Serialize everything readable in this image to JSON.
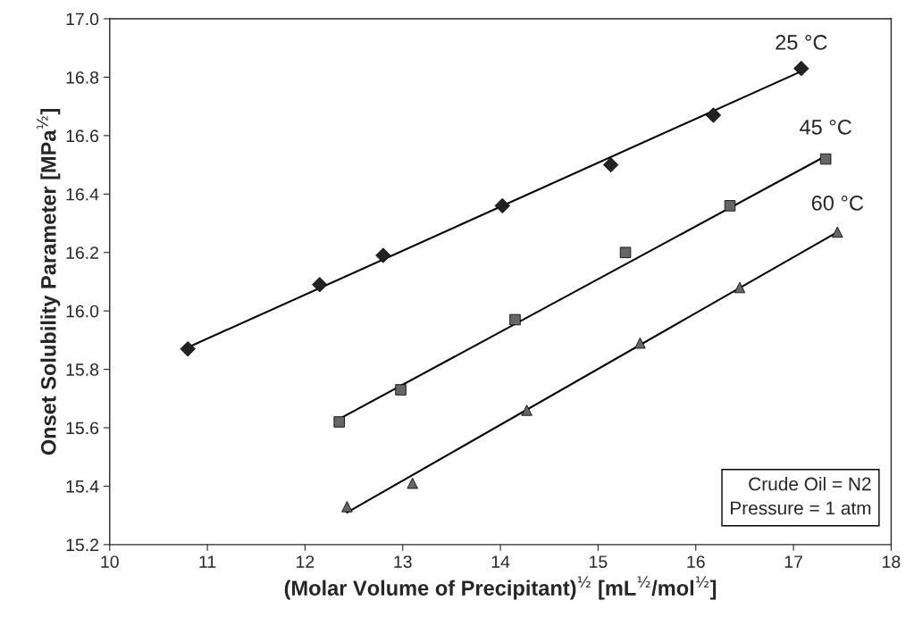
{
  "chart_data": {
    "type": "scatter",
    "xlabel": "(Molar Volume of Precipitant)$^{½}$ [mL$^{½}$/mol$^{½}$]",
    "ylabel": "Onset Solubility Parameter [MPa$^{½}$]",
    "xlim": [
      10,
      18
    ],
    "xticks": [
      10,
      11,
      12,
      13,
      14,
      15,
      16,
      17,
      18
    ],
    "ylim": [
      15.2,
      17.0
    ],
    "yticks": [
      15.2,
      15.4,
      15.6,
      15.8,
      {
        "value": 16.0,
        "label": "16.0"
      },
      16.2,
      16.4,
      16.6,
      16.8,
      {
        "value": 17.0,
        "label": "17.0"
      }
    ],
    "grid": false,
    "series": [
      {
        "marker": "diamond",
        "color": "#222222",
        "x": [
          10.8,
          12.15,
          12.8,
          14.02,
          15.13,
          16.18,
          17.08
        ],
        "values": [
          15.87,
          16.09,
          16.19,
          16.36,
          16.5,
          16.67,
          16.83
        ]
      },
      {
        "marker": "square",
        "color": "#666666",
        "x": [
          12.35,
          12.98,
          14.15,
          15.28,
          16.35,
          17.33
        ],
        "values": [
          15.62,
          15.73,
          15.97,
          16.2,
          16.36,
          16.52
        ]
      },
      {
        "marker": "triangle",
        "color": "#666666",
        "x": [
          12.43,
          13.1,
          14.27,
          15.43,
          16.45,
          17.45
        ],
        "values": [
          15.33,
          15.41,
          15.66,
          15.89,
          16.08,
          16.27
        ]
      },
      {
        "type": "line",
        "color": "#000000",
        "x": [
          10.8,
          17.08
        ],
        "values": [
          15.875,
          16.82
        ]
      },
      {
        "type": "line",
        "color": "#000000",
        "x": [
          12.35,
          17.33
        ],
        "values": [
          15.63,
          16.53
        ]
      },
      {
        "type": "line",
        "color": "#000000",
        "x": [
          12.43,
          17.45
        ],
        "values": [
          15.31,
          16.27
        ]
      }
    ],
    "annotations": [
      {
        "text": "25 °C",
        "x": 17.08,
        "y": 16.82
      },
      {
        "text": "45 °C",
        "x": 17.33,
        "y": 16.53
      },
      {
        "text": "60 °C",
        "x": 17.45,
        "y": 16.27
      },
      "Crude Oil = N2\nPressure = 1 atm"
    ]
  }
}
